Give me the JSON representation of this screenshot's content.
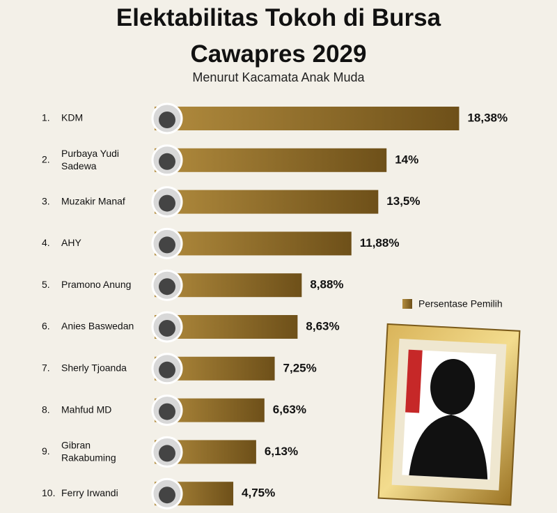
{
  "chart_data": {
    "type": "bar",
    "title": "Elektabilitas Tokoh di Bursa Cawapres 2029",
    "subtitle": "Menurut Kacamata Anak Muda",
    "ranks": [
      "1.",
      "2.",
      "3.",
      "4.",
      "5.",
      "6.",
      "7.",
      "8.",
      "9.",
      "10."
    ],
    "categories": [
      "KDM",
      "Purbaya Yudi Sadewa",
      "Muzakir Manaf",
      "AHY",
      "Pramono Anung",
      "Anies Baswedan",
      "Sherly Tjoanda",
      "Mahfud MD",
      "Gibran Rakabuming",
      "Ferry Irwandi"
    ],
    "series": [
      {
        "name": "Persentase Pemilih",
        "color": "#b28c3e",
        "values": [
          18.38,
          14,
          13.5,
          11.88,
          8.88,
          8.63,
          7.25,
          6.63,
          6.13,
          4.75
        ],
        "value_labels": [
          "18,38%",
          "14%",
          "13,5%",
          "11,88%",
          "8,88%",
          "8,63%",
          "7,25%",
          "6,63%",
          "6,13%",
          "4,75%"
        ]
      }
    ]
  }
}
